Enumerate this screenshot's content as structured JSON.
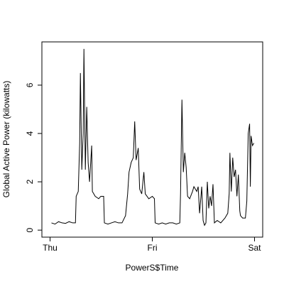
{
  "chart_data": {
    "type": "line",
    "x_label": "PowerS$Time",
    "y_label": "Global Active Power (kilowatts)",
    "color": "#000000",
    "x": [
      0.33,
      1.16,
      1.99,
      2.81,
      3.64,
      4.47,
      5.3,
      5.96,
      6.13,
      6.62,
      6.95,
      7.12,
      7.45,
      7.78,
      7.95,
      8.28,
      8.61,
      8.94,
      9.27,
      9.77,
      9.93,
      10.6,
      11.42,
      11.92,
      12.58,
      12.75,
      13.58,
      14.4,
      15.23,
      16.06,
      16.89,
      17.72,
      18.21,
      18.54,
      19.04,
      19.54,
      19.87,
      20.2,
      20.7,
      21.03,
      21.52,
      22.02,
      22.35,
      23.18,
      24.01,
      24.5,
      24.67,
      25.5,
      26.32,
      27.15,
      27.98,
      28.81,
      29.64,
      30.46,
      30.63,
      30.96,
      31.29,
      31.62,
      31.95,
      32.28,
      32.78,
      33.44,
      33.77,
      34.44,
      34.77,
      35.1,
      35.43,
      35.6,
      35.93,
      36.26,
      36.59,
      36.92,
      37.25,
      37.58,
      37.91,
      38.25,
      38.58,
      39.24,
      40.07,
      41.06,
      41.72,
      42.05,
      42.22,
      42.55,
      42.88,
      43.21,
      43.54,
      43.87,
      44.21,
      44.54,
      44.7,
      45.2,
      45.86,
      46.19,
      46.52,
      46.85,
      47.02,
      47.19,
      47.52,
      47.85
    ],
    "values": [
      0.3,
      0.25,
      0.35,
      0.3,
      0.28,
      0.35,
      0.3,
      0.3,
      1.4,
      1.6,
      3.6,
      6.5,
      2.5,
      4.0,
      7.5,
      2.5,
      5.1,
      2.8,
      2.0,
      3.5,
      1.6,
      1.4,
      1.3,
      1.4,
      1.4,
      0.3,
      0.25,
      0.3,
      0.35,
      0.3,
      0.3,
      0.6,
      1.5,
      2.4,
      2.8,
      3.0,
      4.5,
      2.9,
      3.4,
      1.7,
      1.5,
      2.4,
      1.5,
      1.3,
      1.4,
      1.3,
      0.3,
      0.25,
      0.3,
      0.25,
      0.3,
      0.3,
      0.25,
      0.3,
      1.5,
      5.4,
      2.4,
      3.2,
      2.6,
      1.4,
      1.3,
      1.6,
      1.8,
      1.6,
      1.8,
      0.7,
      1.4,
      1.8,
      0.4,
      0.2,
      0.3,
      2.0,
      0.9,
      1.4,
      1.0,
      1.9,
      0.3,
      0.4,
      0.3,
      0.5,
      0.7,
      1.5,
      3.2,
      1.6,
      3.0,
      2.2,
      2.5,
      1.4,
      2.3,
      0.8,
      0.6,
      0.5,
      0.5,
      1.2,
      4.0,
      4.4,
      1.8,
      3.9,
      3.5,
      3.6
    ],
    "xlim": [
      -1.92,
      49.92
    ],
    "xticks": [
      {
        "value": 0,
        "label": "Thu"
      },
      {
        "value": 24,
        "label": "Fri"
      },
      {
        "value": 48,
        "label": "Sat"
      }
    ],
    "ylim": [
      -0.29,
      7.79
    ],
    "yticks": [
      0,
      2,
      4,
      6
    ]
  }
}
